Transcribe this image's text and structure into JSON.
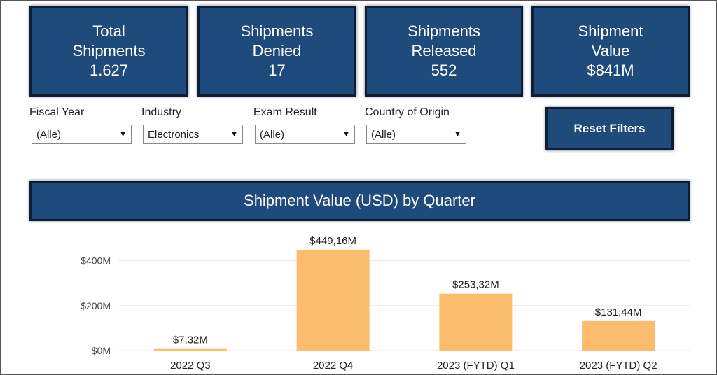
{
  "kpis": [
    {
      "line1": "Total",
      "line2": "Shipments",
      "value": "1.627"
    },
    {
      "line1": "Shipments",
      "line2": "Denied",
      "value": "17"
    },
    {
      "line1": "Shipments",
      "line2": "Released",
      "value": "552"
    },
    {
      "line1": "Shipment",
      "line2": "Value",
      "value": "$841M"
    }
  ],
  "filters": [
    {
      "label": "Fiscal Year",
      "value": "(Alle)"
    },
    {
      "label": "Industry",
      "value": "Electronics"
    },
    {
      "label": "Exam Result",
      "value": "(Alle)"
    },
    {
      "label": "Country of Origin",
      "value": "(Alle)"
    }
  ],
  "reset_label": "Reset Filters",
  "chart_title": "Shipment Value (USD) by Quarter",
  "colors": {
    "header": "#1f4a7c",
    "bar": "#fbbc6e"
  },
  "chart_data": {
    "type": "bar",
    "title": "Shipment Value (USD) by Quarter",
    "categories": [
      "2022 Q3",
      "2022 Q4",
      "2023 (FYTD) Q1",
      "2023 (FYTD) Q2"
    ],
    "values": [
      7.32,
      449.16,
      253.32,
      131.44
    ],
    "value_labels": [
      "$7,32M",
      "$449,16M",
      "$253,32M",
      "$131,44M"
    ],
    "yticks": [
      0,
      200,
      400
    ],
    "ytick_labels": [
      "$0M",
      "$200M",
      "$400M"
    ],
    "ylim": [
      0,
      480
    ],
    "grid": true,
    "xlabel": "",
    "ylabel": ""
  }
}
